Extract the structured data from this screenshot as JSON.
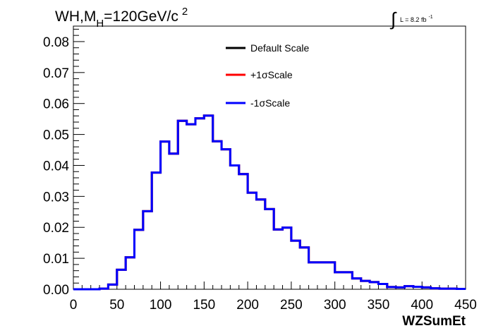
{
  "chart_data": {
    "type": "line",
    "title_parts": {
      "main": "WH,M",
      "sub": "H",
      "rest": "=120GeV/c",
      "sup": "2"
    },
    "lumi_parts": {
      "integral": "∫",
      "text": "L = 8.2 fb",
      "sup": "-1"
    },
    "xlabel": "WZSumEt",
    "ylabel": "",
    "xlim": [
      0,
      450
    ],
    "ylim": [
      0,
      0.085
    ],
    "xticks": [
      0,
      50,
      100,
      150,
      200,
      250,
      300,
      350,
      400,
      450
    ],
    "xtick_labels": [
      "0",
      "50",
      "100",
      "150",
      "200",
      "250",
      "300",
      "350",
      "400",
      "450"
    ],
    "yticks": [
      0,
      0.01,
      0.02,
      0.03,
      0.04,
      0.05,
      0.06,
      0.07,
      0.08
    ],
    "ytick_labels": [
      "0.00",
      "0.01",
      "0.02",
      "0.03",
      "0.04",
      "0.05",
      "0.06",
      "0.07",
      "0.08"
    ],
    "bin_edges": [
      0,
      10,
      20,
      30,
      40,
      50,
      60,
      70,
      80,
      90,
      100,
      110,
      120,
      130,
      140,
      150,
      160,
      170,
      180,
      190,
      200,
      210,
      220,
      230,
      240,
      250,
      260,
      270,
      280,
      290,
      300,
      310,
      320,
      330,
      340,
      350,
      360,
      370,
      380,
      390,
      400,
      410,
      420,
      430,
      440,
      450
    ],
    "series": [
      {
        "name": "Default Scale",
        "color": "#000000",
        "values": [
          0,
          0,
          0,
          0.0002,
          0.0015,
          0.0063,
          0.0103,
          0.0192,
          0.0252,
          0.0377,
          0.0477,
          0.0438,
          0.0544,
          0.0533,
          0.0552,
          0.0561,
          0.0478,
          0.0452,
          0.04,
          0.0372,
          0.0312,
          0.029,
          0.0259,
          0.0193,
          0.0199,
          0.0157,
          0.0135,
          0.0087,
          0.0087,
          0.0087,
          0.0055,
          0.0055,
          0.0035,
          0.0027,
          0.0023,
          0.0017,
          0.0007,
          0.0006,
          0.001,
          0.0008,
          0.0006,
          0.0003,
          0.0002,
          0.0002,
          0.0001
        ]
      },
      {
        "name": "+1σScale",
        "color": "#ff0000",
        "values": [
          0,
          0,
          0,
          0.0002,
          0.0015,
          0.0063,
          0.0103,
          0.0192,
          0.0252,
          0.0377,
          0.0477,
          0.0438,
          0.0544,
          0.0533,
          0.0552,
          0.0561,
          0.0478,
          0.0452,
          0.04,
          0.0372,
          0.0312,
          0.029,
          0.0259,
          0.0193,
          0.0199,
          0.0157,
          0.0135,
          0.0087,
          0.0087,
          0.0087,
          0.0055,
          0.0055,
          0.0035,
          0.0027,
          0.0023,
          0.0017,
          0.0007,
          0.0006,
          0.001,
          0.0008,
          0.0006,
          0.0003,
          0.0002,
          0.0002,
          0.0001
        ]
      },
      {
        "name": "-1σScale",
        "color": "#0000ff",
        "values": [
          0,
          0,
          0,
          0.0002,
          0.0015,
          0.0063,
          0.0103,
          0.0192,
          0.0252,
          0.0377,
          0.0477,
          0.0438,
          0.0544,
          0.0533,
          0.0552,
          0.0561,
          0.0478,
          0.0452,
          0.04,
          0.0372,
          0.0312,
          0.029,
          0.0259,
          0.0193,
          0.0199,
          0.0157,
          0.0135,
          0.0087,
          0.0087,
          0.0087,
          0.0055,
          0.0055,
          0.0035,
          0.0027,
          0.0023,
          0.0017,
          0.0007,
          0.0006,
          0.001,
          0.0008,
          0.0006,
          0.0003,
          0.0002,
          0.0002,
          0.0001
        ]
      }
    ],
    "legend": {
      "placement": "top-center",
      "entries": [
        "Default Scale",
        "+1σScale",
        "-1σScale"
      ]
    },
    "grid": false
  }
}
